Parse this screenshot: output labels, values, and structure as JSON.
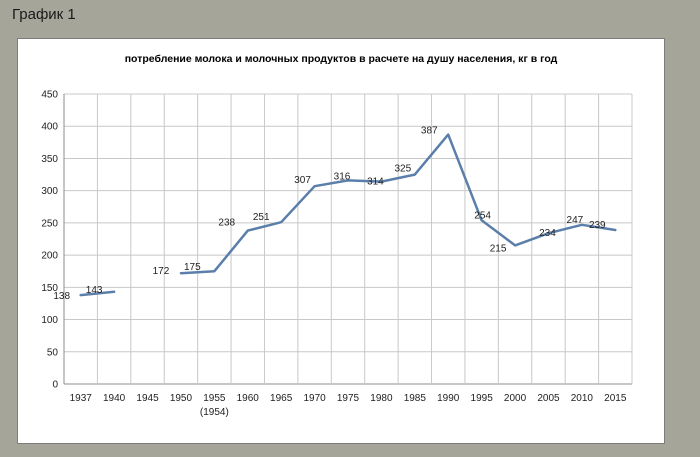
{
  "page": {
    "heading": "График 1"
  },
  "chart_data": {
    "type": "line",
    "title": "потребление молока и молочных продуктов в расчете на душу населения, кг в год",
    "xlabel": "",
    "ylabel": "",
    "categories": [
      "1937",
      "1940",
      "1945",
      "1950",
      "1955",
      "1960",
      "1965",
      "1970",
      "1975",
      "1980",
      "1985",
      "1990",
      "1995",
      "2000",
      "2005",
      "2010",
      "2015"
    ],
    "category_sublabels": {
      "1955": "(1954)"
    },
    "ylim": [
      0,
      450
    ],
    "yticks": [
      0,
      50,
      100,
      150,
      200,
      250,
      300,
      350,
      400,
      450
    ],
    "grid": true,
    "legend": "none",
    "series": [
      {
        "color": "#5b7faa",
        "segments": [
          [
            {
              "x": "1937",
              "y": 138,
              "label": "138"
            },
            {
              "x": "1940",
              "y": 143,
              "label": "143"
            }
          ],
          [
            {
              "x": "1950",
              "y": 172,
              "label": "172"
            },
            {
              "x": "1955",
              "y": 175,
              "label": "175"
            },
            {
              "x": "1960",
              "y": 238,
              "label": "238"
            },
            {
              "x": "1965",
              "y": 251,
              "label": "251"
            },
            {
              "x": "1970",
              "y": 307,
              "label": "307"
            },
            {
              "x": "1975",
              "y": 316,
              "label": "316"
            },
            {
              "x": "1980",
              "y": 314,
              "label": "314"
            },
            {
              "x": "1985",
              "y": 325,
              "label": "325"
            },
            {
              "x": "1990",
              "y": 387,
              "label": "387"
            },
            {
              "x": "1995",
              "y": 254,
              "label": "254"
            },
            {
              "x": "2000",
              "y": 215,
              "label": "215"
            },
            {
              "x": "2005",
              "y": 234,
              "label": "234"
            },
            {
              "x": "2010",
              "y": 247,
              "label": "247"
            },
            {
              "x": "2015",
              "y": 239,
              "label": "239"
            }
          ]
        ]
      }
    ]
  }
}
